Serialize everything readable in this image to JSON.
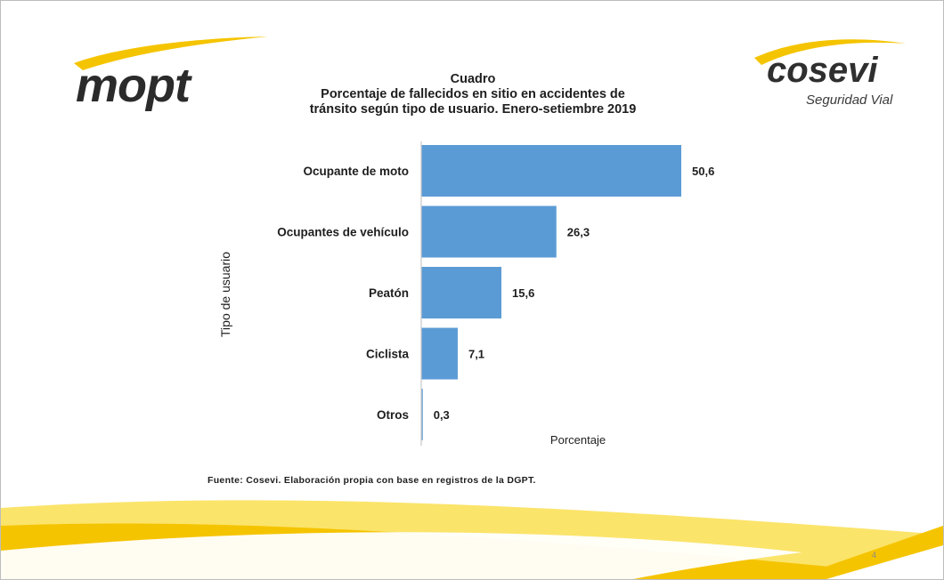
{
  "header": {
    "left_logo_text": "mopt",
    "right_logo_text": "cosevi",
    "right_logo_subtitle": "Seguridad Vial"
  },
  "title": {
    "line1": "Cuadro",
    "line2": "Porcentaje de fallecidos en sitio en accidentes de",
    "line3": "tránsito según tipo de usuario. Enero-setiembre 2019"
  },
  "chart_data": {
    "type": "bar",
    "orientation": "horizontal",
    "title": "Porcentaje de fallecidos en sitio en accidentes de tránsito según tipo de usuario. Enero-setiembre 2019",
    "categories": [
      "Ocupante de moto",
      "Ocupantes de vehículo",
      "Peatón",
      "Ciclista",
      "Otros"
    ],
    "values": [
      50.6,
      26.3,
      15.6,
      7.1,
      0.3
    ],
    "value_labels": [
      "50,6",
      "26,3",
      "15,6",
      "7,1",
      "0,3"
    ],
    "xlabel": "Porcentaje",
    "ylabel": "Tipo de usuario",
    "xlim": [
      0,
      55
    ],
    "grid": false,
    "legend": "none",
    "bar_color": "#5b9bd5"
  },
  "footer": {
    "source": "Fuente: Cosevi. Elaboración propia con base en registros de la DGPT.",
    "page_number": "4"
  },
  "colors": {
    "accent_yellow": "#f5c400",
    "light_yellow": "#fbe46a",
    "bar": "#5b9bd5"
  }
}
